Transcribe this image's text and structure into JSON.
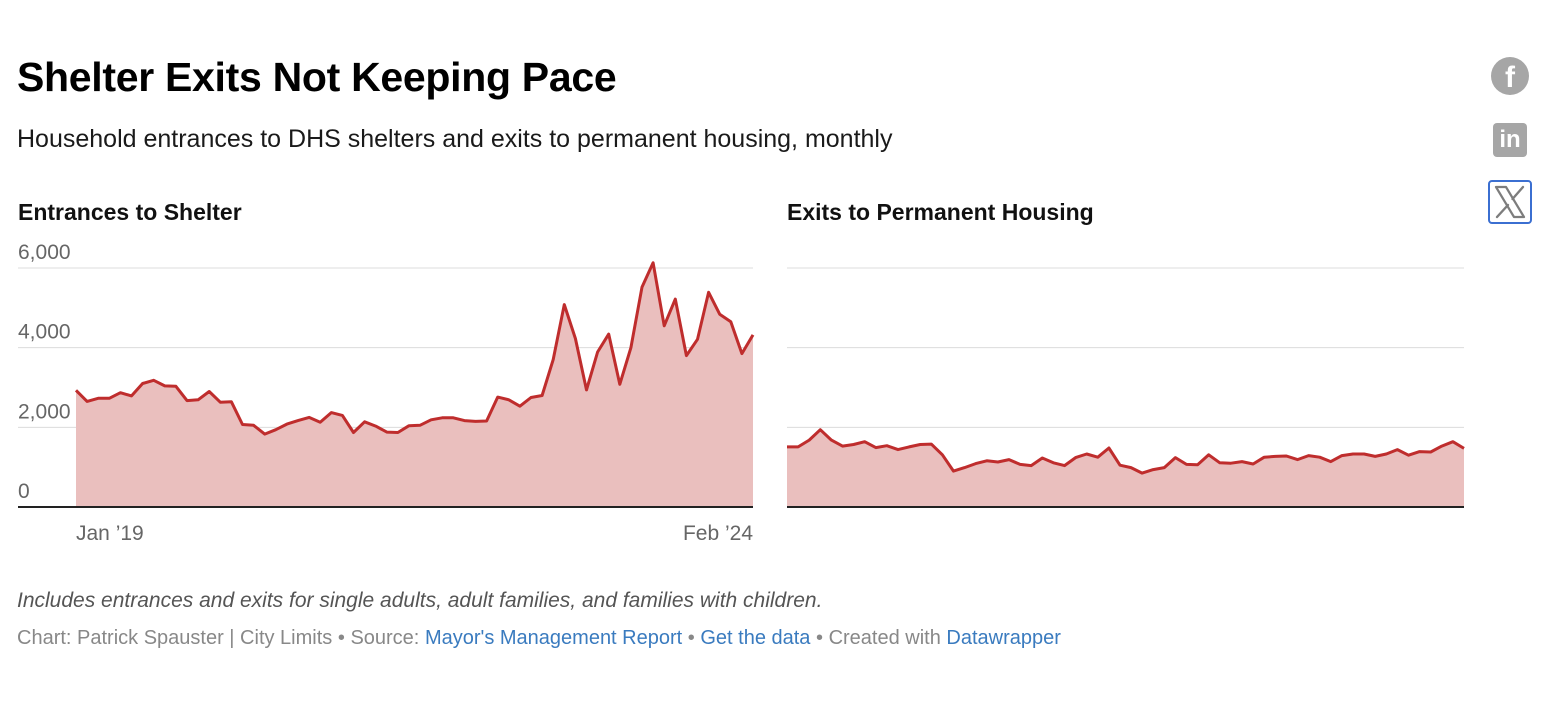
{
  "header": {
    "title": "Shelter Exits Not Keeping Pace",
    "subtitle": "Household entrances to DHS shelters and exits to permanent housing, monthly"
  },
  "footer": {
    "note": "Includes entrances and exits for single adults, adult families, and families with children.",
    "credit": "Chart: Patrick Spauster | City Limits",
    "source_label": "Source:",
    "source_link": "Mayor's Management Report",
    "data_link": "Get the data",
    "created_with": "Created with",
    "tool_link": "Datawrapper",
    "separator": "•"
  },
  "share": {
    "icons": [
      "facebook-icon",
      "linkedin-icon",
      "x-icon"
    ],
    "facebook_glyph": "f",
    "linkedin_glyph": "in"
  },
  "colors": {
    "line": "#bf2d2d",
    "fill": "#eabfbe",
    "grid": "#dcdcdc",
    "axis": "#222222",
    "ticks": "#666666"
  },
  "chart_data": [
    {
      "type": "area",
      "title": "Entrances to Shelter",
      "x_ticks": [
        "Jan ’19",
        "Feb ’24"
      ],
      "y_ticks": [
        0,
        2000,
        4000,
        6000
      ],
      "y_tick_labels": [
        "0",
        "2,000",
        "4,000",
        "6,000"
      ],
      "ylim": [
        0,
        6000
      ],
      "grid": true,
      "period": {
        "start": "Jan 2019",
        "end": "Feb 2024"
      },
      "values": [
        2930,
        2650,
        2730,
        2730,
        2870,
        2790,
        3100,
        3180,
        3040,
        3030,
        2670,
        2690,
        2900,
        2630,
        2640,
        2070,
        2050,
        1830,
        1940,
        2080,
        2170,
        2250,
        2130,
        2370,
        2300,
        1870,
        2140,
        2030,
        1880,
        1870,
        2040,
        2050,
        2190,
        2240,
        2240,
        2170,
        2150,
        2160,
        2760,
        2690,
        2530,
        2750,
        2800,
        3700,
        5080,
        4230,
        2940,
        3890,
        4340,
        3080,
        4000,
        5520,
        6130,
        4550,
        5220,
        3800,
        4210,
        5390,
        4840,
        4650,
        3850,
        4320
      ]
    },
    {
      "type": "area",
      "title": "Exits to Permanent Housing",
      "x_ticks": [],
      "y_ticks": [
        0,
        2000,
        4000,
        6000
      ],
      "ylim": [
        0,
        6000
      ],
      "grid": true,
      "values": [
        1510,
        1510,
        1680,
        1940,
        1680,
        1530,
        1570,
        1640,
        1490,
        1540,
        1440,
        1510,
        1570,
        1580,
        1310,
        900,
        990,
        1090,
        1160,
        1130,
        1190,
        1070,
        1040,
        1230,
        1110,
        1040,
        1240,
        1330,
        1250,
        1480,
        1050,
        990,
        850,
        940,
        990,
        1240,
        1070,
        1060,
        1310,
        1110,
        1100,
        1140,
        1080,
        1250,
        1270,
        1280,
        1190,
        1290,
        1250,
        1140,
        1290,
        1330,
        1330,
        1270,
        1330,
        1440,
        1300,
        1390,
        1380,
        1530,
        1640,
        1470
      ]
    }
  ]
}
